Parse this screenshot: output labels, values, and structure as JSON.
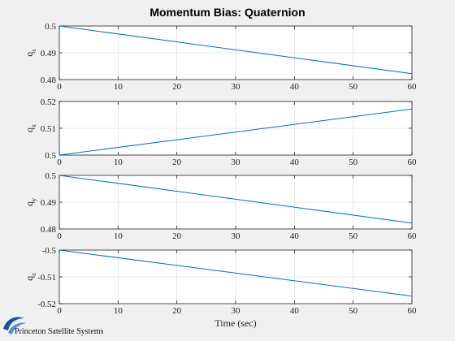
{
  "figure": {
    "background": "#f0f0f0",
    "line_color": "#0072bd",
    "logo_text": "Princeton Satellite Systems",
    "logo_color": "#1a4f9c"
  },
  "chart_data": {
    "title": "Momentum Bias: Quaternion",
    "xlabel": "Time (sec)",
    "subplots": [
      {
        "type": "line",
        "ylabel": "q",
        "ylabel_sub": "s",
        "x": [
          0,
          60
        ],
        "y": [
          0.5,
          0.4822
        ],
        "xlim": [
          0,
          60
        ],
        "ylim": [
          0.48,
          0.5
        ],
        "xticks": [
          0,
          10,
          20,
          30,
          40,
          50,
          60
        ],
        "yticks": [
          0.48,
          0.49,
          0.5
        ],
        "ytick_labels": [
          "0.48",
          "0.49",
          "0.5"
        ],
        "grid": true
      },
      {
        "type": "line",
        "ylabel": "q",
        "ylabel_sub": "x",
        "x": [
          0,
          60
        ],
        "y": [
          0.5,
          0.5172
        ],
        "xlim": [
          0,
          60
        ],
        "ylim": [
          0.5,
          0.52
        ],
        "xticks": [
          0,
          10,
          20,
          30,
          40,
          50,
          60
        ],
        "yticks": [
          0.5,
          0.51,
          0.52
        ],
        "ytick_labels": [
          "0.5",
          "0.51",
          "0.52"
        ],
        "grid": true
      },
      {
        "type": "line",
        "ylabel": "q",
        "ylabel_sub": "y",
        "x": [
          0,
          60
        ],
        "y": [
          0.5,
          0.4822
        ],
        "xlim": [
          0,
          60
        ],
        "ylim": [
          0.48,
          0.5
        ],
        "xticks": [
          0,
          10,
          20,
          30,
          40,
          50,
          60
        ],
        "yticks": [
          0.48,
          0.49,
          0.5
        ],
        "ytick_labels": [
          "0.48",
          "0.49",
          "0.5"
        ],
        "grid": true
      },
      {
        "type": "line",
        "ylabel": "q",
        "ylabel_sub": "z",
        "x": [
          0,
          60
        ],
        "y": [
          -0.5,
          -0.5172
        ],
        "xlim": [
          0,
          60
        ],
        "ylim": [
          -0.52,
          -0.5
        ],
        "xticks": [
          0,
          10,
          20,
          30,
          40,
          50,
          60
        ],
        "yticks": [
          -0.52,
          -0.51,
          -0.5
        ],
        "ytick_labels": [
          "-0.52",
          "-0.51",
          "-0.5"
        ],
        "grid": true
      }
    ]
  }
}
